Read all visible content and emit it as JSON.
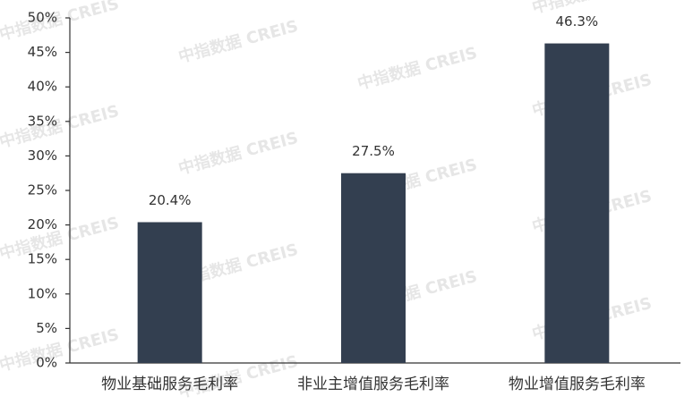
{
  "chart_data": {
    "type": "bar",
    "watermark": "中指数据 CREIS",
    "categories": [
      "物业基础服务毛利率",
      "非业主增值服务毛利率",
      "物业增值服务毛利率"
    ],
    "values": [
      20.4,
      27.5,
      46.3
    ],
    "value_labels": [
      "20.4%",
      "27.5%",
      "46.3%"
    ],
    "color": "#333f50",
    "ylim": [
      0,
      50
    ],
    "yticks": [
      {
        "value": 0,
        "label": "0%"
      },
      {
        "value": 5,
        "label": "5%"
      },
      {
        "value": 10,
        "label": "10%"
      },
      {
        "value": 15,
        "label": "15%"
      },
      {
        "value": 20,
        "label": "20%"
      },
      {
        "value": 25,
        "label": "25%"
      },
      {
        "value": 30,
        "label": "30%"
      },
      {
        "value": 35,
        "label": "35%"
      },
      {
        "value": 40,
        "label": "40%"
      },
      {
        "value": 45,
        "label": "45%"
      },
      {
        "value": 50,
        "label": "50%"
      }
    ],
    "grid": false
  }
}
